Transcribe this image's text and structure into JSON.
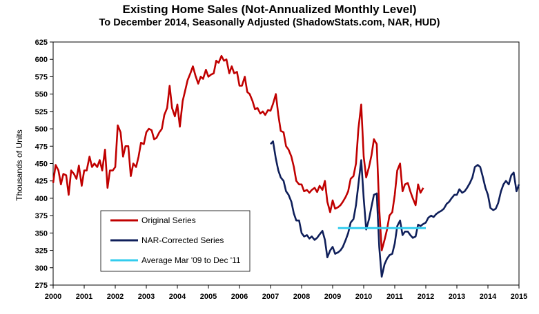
{
  "chart_data": {
    "type": "line",
    "title": "Existing Home Sales (Not-Annualized Monthly Level)",
    "subtitle": "To December 2014, Seasonally Adjusted (ShadowStats.com, NAR, HUD)",
    "xlabel": "",
    "ylabel": "Thousands of Units",
    "xlim": [
      2000,
      2015
    ],
    "ylim": [
      275,
      625
    ],
    "x_ticks": [
      "2000",
      "2001",
      "2002",
      "2003",
      "2004",
      "2005",
      "2006",
      "2007",
      "2008",
      "2009",
      "2010",
      "2011",
      "2012",
      "2013",
      "2014",
      "2015"
    ],
    "y_ticks": [
      625,
      600,
      575,
      550,
      525,
      500,
      475,
      450,
      425,
      400,
      375,
      350,
      325,
      300,
      275
    ],
    "grid": false,
    "legend": {
      "placement": "lower-left",
      "entries": [
        "Original Series",
        "NAR-Corrected Series",
        "Average Mar '09 to Dec '11"
      ]
    },
    "series": [
      {
        "name": "Original Series",
        "color": "#c00000",
        "points": [
          [
            2000.0,
            422
          ],
          [
            2000.08,
            448
          ],
          [
            2000.17,
            440
          ],
          [
            2000.25,
            420
          ],
          [
            2000.33,
            435
          ],
          [
            2000.42,
            433
          ],
          [
            2000.5,
            405
          ],
          [
            2000.58,
            440
          ],
          [
            2000.67,
            435
          ],
          [
            2000.75,
            428
          ],
          [
            2000.83,
            447
          ],
          [
            2000.92,
            418
          ],
          [
            2001.0,
            440
          ],
          [
            2001.08,
            440
          ],
          [
            2001.17,
            460
          ],
          [
            2001.25,
            445
          ],
          [
            2001.33,
            450
          ],
          [
            2001.42,
            445
          ],
          [
            2001.5,
            455
          ],
          [
            2001.58,
            440
          ],
          [
            2001.67,
            470
          ],
          [
            2001.75,
            415
          ],
          [
            2001.83,
            440
          ],
          [
            2001.92,
            440
          ],
          [
            2002.0,
            445
          ],
          [
            2002.08,
            505
          ],
          [
            2002.17,
            495
          ],
          [
            2002.25,
            460
          ],
          [
            2002.33,
            475
          ],
          [
            2002.42,
            475
          ],
          [
            2002.5,
            432
          ],
          [
            2002.58,
            450
          ],
          [
            2002.67,
            445
          ],
          [
            2002.75,
            460
          ],
          [
            2002.83,
            480
          ],
          [
            2002.92,
            478
          ],
          [
            2003.0,
            495
          ],
          [
            2003.08,
            500
          ],
          [
            2003.17,
            498
          ],
          [
            2003.25,
            485
          ],
          [
            2003.33,
            487
          ],
          [
            2003.42,
            495
          ],
          [
            2003.5,
            500
          ],
          [
            2003.58,
            520
          ],
          [
            2003.67,
            530
          ],
          [
            2003.75,
            562
          ],
          [
            2003.83,
            530
          ],
          [
            2003.92,
            518
          ],
          [
            2004.0,
            535
          ],
          [
            2004.08,
            503
          ],
          [
            2004.17,
            540
          ],
          [
            2004.25,
            555
          ],
          [
            2004.33,
            570
          ],
          [
            2004.42,
            580
          ],
          [
            2004.5,
            590
          ],
          [
            2004.58,
            577
          ],
          [
            2004.67,
            565
          ],
          [
            2004.75,
            575
          ],
          [
            2004.83,
            572
          ],
          [
            2004.92,
            585
          ],
          [
            2005.0,
            575
          ],
          [
            2005.08,
            578
          ],
          [
            2005.17,
            580
          ],
          [
            2005.25,
            598
          ],
          [
            2005.33,
            595
          ],
          [
            2005.42,
            605
          ],
          [
            2005.5,
            598
          ],
          [
            2005.58,
            600
          ],
          [
            2005.67,
            580
          ],
          [
            2005.75,
            590
          ],
          [
            2005.83,
            580
          ],
          [
            2005.92,
            582
          ],
          [
            2006.0,
            562
          ],
          [
            2006.08,
            562
          ],
          [
            2006.17,
            575
          ],
          [
            2006.25,
            553
          ],
          [
            2006.33,
            550
          ],
          [
            2006.42,
            540
          ],
          [
            2006.5,
            528
          ],
          [
            2006.58,
            530
          ],
          [
            2006.67,
            522
          ],
          [
            2006.75,
            525
          ],
          [
            2006.83,
            520
          ],
          [
            2006.92,
            527
          ],
          [
            2007.0,
            526
          ],
          [
            2007.08,
            536
          ],
          [
            2007.17,
            550
          ],
          [
            2007.25,
            520
          ],
          [
            2007.33,
            497
          ],
          [
            2007.42,
            495
          ],
          [
            2007.5,
            475
          ],
          [
            2007.58,
            470
          ],
          [
            2007.67,
            460
          ],
          [
            2007.75,
            445
          ],
          [
            2007.83,
            425
          ],
          [
            2007.92,
            420
          ],
          [
            2008.0,
            420
          ],
          [
            2008.08,
            410
          ],
          [
            2008.17,
            412
          ],
          [
            2008.25,
            408
          ],
          [
            2008.33,
            412
          ],
          [
            2008.42,
            415
          ],
          [
            2008.5,
            409
          ],
          [
            2008.58,
            418
          ],
          [
            2008.67,
            412
          ],
          [
            2008.75,
            425
          ],
          [
            2008.83,
            395
          ],
          [
            2008.92,
            380
          ],
          [
            2009.0,
            397
          ],
          [
            2009.08,
            385
          ],
          [
            2009.17,
            387
          ],
          [
            2009.25,
            390
          ],
          [
            2009.33,
            395
          ],
          [
            2009.42,
            402
          ],
          [
            2009.5,
            410
          ],
          [
            2009.58,
            428
          ],
          [
            2009.67,
            432
          ],
          [
            2009.75,
            450
          ],
          [
            2009.83,
            500
          ],
          [
            2009.92,
            535
          ],
          [
            2010.0,
            460
          ],
          [
            2010.08,
            430
          ],
          [
            2010.17,
            445
          ],
          [
            2010.25,
            462
          ],
          [
            2010.33,
            485
          ],
          [
            2010.42,
            478
          ],
          [
            2010.5,
            385
          ],
          [
            2010.58,
            325
          ],
          [
            2010.67,
            340
          ],
          [
            2010.75,
            355
          ],
          [
            2010.83,
            375
          ],
          [
            2010.92,
            380
          ],
          [
            2011.0,
            405
          ],
          [
            2011.08,
            440
          ],
          [
            2011.17,
            450
          ],
          [
            2011.25,
            410
          ],
          [
            2011.33,
            420
          ],
          [
            2011.42,
            422
          ],
          [
            2011.5,
            410
          ],
          [
            2011.58,
            400
          ],
          [
            2011.67,
            390
          ],
          [
            2011.75,
            420
          ],
          [
            2011.83,
            408
          ],
          [
            2011.92,
            415
          ]
        ]
      },
      {
        "name": "NAR-Corrected Series",
        "color": "#0f1f5a",
        "points": [
          [
            2007.0,
            478
          ],
          [
            2007.08,
            482
          ],
          [
            2007.17,
            457
          ],
          [
            2007.25,
            440
          ],
          [
            2007.33,
            430
          ],
          [
            2007.42,
            425
          ],
          [
            2007.5,
            410
          ],
          [
            2007.58,
            405
          ],
          [
            2007.67,
            395
          ],
          [
            2007.75,
            378
          ],
          [
            2007.83,
            368
          ],
          [
            2007.92,
            368
          ],
          [
            2008.0,
            350
          ],
          [
            2008.08,
            345
          ],
          [
            2008.17,
            347
          ],
          [
            2008.25,
            342
          ],
          [
            2008.33,
            345
          ],
          [
            2008.42,
            340
          ],
          [
            2008.5,
            343
          ],
          [
            2008.58,
            348
          ],
          [
            2008.67,
            353
          ],
          [
            2008.75,
            340
          ],
          [
            2008.83,
            315
          ],
          [
            2008.92,
            325
          ],
          [
            2009.0,
            330
          ],
          [
            2009.08,
            320
          ],
          [
            2009.17,
            322
          ],
          [
            2009.25,
            325
          ],
          [
            2009.33,
            330
          ],
          [
            2009.42,
            340
          ],
          [
            2009.5,
            350
          ],
          [
            2009.58,
            365
          ],
          [
            2009.67,
            370
          ],
          [
            2009.75,
            390
          ],
          [
            2009.83,
            420
          ],
          [
            2009.92,
            455
          ],
          [
            2010.0,
            400
          ],
          [
            2010.08,
            355
          ],
          [
            2010.17,
            370
          ],
          [
            2010.25,
            388
          ],
          [
            2010.33,
            405
          ],
          [
            2010.42,
            407
          ],
          [
            2010.5,
            330
          ],
          [
            2010.58,
            287
          ],
          [
            2010.67,
            305
          ],
          [
            2010.75,
            313
          ],
          [
            2010.83,
            318
          ],
          [
            2010.92,
            320
          ],
          [
            2011.0,
            335
          ],
          [
            2011.08,
            360
          ],
          [
            2011.17,
            368
          ],
          [
            2011.25,
            347
          ],
          [
            2011.33,
            352
          ],
          [
            2011.42,
            352
          ],
          [
            2011.5,
            347
          ],
          [
            2011.58,
            343
          ],
          [
            2011.67,
            345
          ],
          [
            2011.75,
            362
          ],
          [
            2011.83,
            360
          ],
          [
            2011.92,
            363
          ],
          [
            2012.0,
            365
          ],
          [
            2012.08,
            372
          ],
          [
            2012.17,
            375
          ],
          [
            2012.25,
            373
          ],
          [
            2012.33,
            377
          ],
          [
            2012.42,
            380
          ],
          [
            2012.5,
            382
          ],
          [
            2012.58,
            385
          ],
          [
            2012.67,
            392
          ],
          [
            2012.75,
            395
          ],
          [
            2012.83,
            400
          ],
          [
            2012.92,
            405
          ],
          [
            2013.0,
            405
          ],
          [
            2013.08,
            413
          ],
          [
            2013.17,
            408
          ],
          [
            2013.25,
            410
          ],
          [
            2013.33,
            415
          ],
          [
            2013.42,
            422
          ],
          [
            2013.5,
            430
          ],
          [
            2013.58,
            445
          ],
          [
            2013.67,
            448
          ],
          [
            2013.75,
            445
          ],
          [
            2013.83,
            432
          ],
          [
            2013.92,
            415
          ],
          [
            2014.0,
            405
          ],
          [
            2014.08,
            386
          ],
          [
            2014.17,
            383
          ],
          [
            2014.25,
            385
          ],
          [
            2014.33,
            393
          ],
          [
            2014.42,
            410
          ],
          [
            2014.5,
            420
          ],
          [
            2014.58,
            425
          ],
          [
            2014.67,
            420
          ],
          [
            2014.75,
            433
          ],
          [
            2014.83,
            437
          ],
          [
            2014.92,
            410
          ],
          [
            2015.0,
            420
          ]
        ]
      },
      {
        "name": "Average Mar '09 to Dec '11",
        "color": "#33ccee",
        "points": [
          [
            2009.17,
            357
          ],
          [
            2012.0,
            357
          ]
        ]
      }
    ]
  }
}
